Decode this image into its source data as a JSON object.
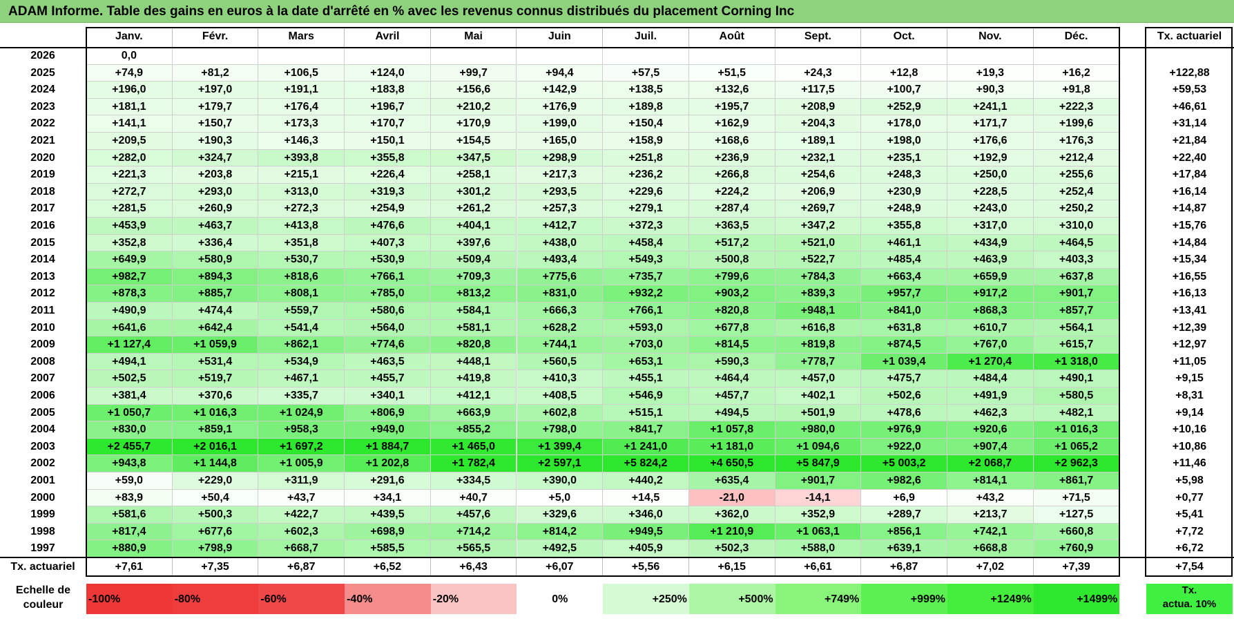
{
  "title": "ADAM Informe. Table des gains en euros à la date d'arrêté en % avec les revenus connus distribués du placement Corning Inc",
  "months": [
    "Janv.",
    "Févr.",
    "Mars",
    "Avril",
    "Mai",
    "Juin",
    "Juil.",
    "Août",
    "Sept.",
    "Oct.",
    "Nov.",
    "Déc."
  ],
  "rate_header": "Tx. actuariel",
  "rows": [
    {
      "year": "2026",
      "values": [
        "0,0",
        "",
        "",
        "",
        "",
        "",
        "",
        "",
        "",
        "",
        "",
        ""
      ],
      "rate": ""
    },
    {
      "year": "2025",
      "values": [
        "+74,9",
        "+81,2",
        "+106,5",
        "+124,0",
        "+99,7",
        "+94,4",
        "+57,5",
        "+51,5",
        "+24,3",
        "+12,8",
        "+19,3",
        "+16,2"
      ],
      "rate": "+122,88"
    },
    {
      "year": "2024",
      "values": [
        "+196,0",
        "+197,0",
        "+191,1",
        "+183,8",
        "+156,6",
        "+142,9",
        "+138,5",
        "+132,6",
        "+117,5",
        "+100,7",
        "+90,3",
        "+91,8"
      ],
      "rate": "+59,53"
    },
    {
      "year": "2023",
      "values": [
        "+181,1",
        "+179,7",
        "+176,4",
        "+196,7",
        "+210,2",
        "+176,9",
        "+189,8",
        "+195,7",
        "+208,9",
        "+252,9",
        "+241,1",
        "+222,3"
      ],
      "rate": "+46,61"
    },
    {
      "year": "2022",
      "values": [
        "+141,1",
        "+150,7",
        "+173,3",
        "+170,7",
        "+170,9",
        "+199,0",
        "+150,4",
        "+162,9",
        "+204,3",
        "+178,0",
        "+171,7",
        "+199,6"
      ],
      "rate": "+31,14"
    },
    {
      "year": "2021",
      "values": [
        "+209,5",
        "+190,3",
        "+146,3",
        "+150,1",
        "+154,5",
        "+165,0",
        "+158,9",
        "+168,6",
        "+189,1",
        "+198,0",
        "+176,6",
        "+176,3"
      ],
      "rate": "+21,84"
    },
    {
      "year": "2020",
      "values": [
        "+282,0",
        "+324,7",
        "+393,8",
        "+355,8",
        "+347,5",
        "+298,9",
        "+251,8",
        "+236,9",
        "+232,1",
        "+235,1",
        "+192,9",
        "+212,4"
      ],
      "rate": "+22,40"
    },
    {
      "year": "2019",
      "values": [
        "+221,3",
        "+203,8",
        "+215,1",
        "+226,4",
        "+258,1",
        "+217,3",
        "+236,2",
        "+266,8",
        "+254,6",
        "+248,3",
        "+250,0",
        "+255,6"
      ],
      "rate": "+17,84"
    },
    {
      "year": "2018",
      "values": [
        "+272,7",
        "+293,0",
        "+313,0",
        "+319,3",
        "+301,2",
        "+293,5",
        "+229,6",
        "+224,2",
        "+206,9",
        "+230,9",
        "+228,5",
        "+252,4"
      ],
      "rate": "+16,14"
    },
    {
      "year": "2017",
      "values": [
        "+281,5",
        "+260,9",
        "+272,3",
        "+254,9",
        "+261,2",
        "+257,3",
        "+279,1",
        "+287,4",
        "+269,7",
        "+248,9",
        "+243,0",
        "+250,2"
      ],
      "rate": "+14,87"
    },
    {
      "year": "2016",
      "values": [
        "+453,9",
        "+463,7",
        "+413,8",
        "+476,6",
        "+404,1",
        "+412,7",
        "+372,3",
        "+363,5",
        "+347,2",
        "+355,8",
        "+317,0",
        "+310,0"
      ],
      "rate": "+15,76"
    },
    {
      "year": "2015",
      "values": [
        "+352,8",
        "+336,4",
        "+351,8",
        "+407,3",
        "+397,6",
        "+438,0",
        "+458,4",
        "+517,2",
        "+521,0",
        "+461,1",
        "+434,9",
        "+464,5"
      ],
      "rate": "+14,84"
    },
    {
      "year": "2014",
      "values": [
        "+649,9",
        "+580,9",
        "+530,7",
        "+530,9",
        "+509,4",
        "+493,4",
        "+549,3",
        "+500,8",
        "+522,7",
        "+485,4",
        "+463,9",
        "+403,3"
      ],
      "rate": "+15,34"
    },
    {
      "year": "2013",
      "values": [
        "+982,7",
        "+894,3",
        "+818,6",
        "+766,1",
        "+709,3",
        "+775,6",
        "+735,7",
        "+799,6",
        "+784,3",
        "+663,4",
        "+659,9",
        "+637,8"
      ],
      "rate": "+16,55"
    },
    {
      "year": "2012",
      "values": [
        "+878,3",
        "+885,7",
        "+808,1",
        "+785,0",
        "+813,2",
        "+831,0",
        "+932,2",
        "+903,2",
        "+839,3",
        "+957,7",
        "+917,2",
        "+901,7"
      ],
      "rate": "+16,13"
    },
    {
      "year": "2011",
      "values": [
        "+490,9",
        "+474,4",
        "+559,7",
        "+580,6",
        "+584,1",
        "+666,3",
        "+766,1",
        "+820,8",
        "+948,1",
        "+841,0",
        "+868,3",
        "+857,7"
      ],
      "rate": "+13,41"
    },
    {
      "year": "2010",
      "values": [
        "+641,6",
        "+642,4",
        "+541,4",
        "+564,0",
        "+581,1",
        "+628,2",
        "+593,0",
        "+677,8",
        "+616,8",
        "+631,8",
        "+610,7",
        "+564,1"
      ],
      "rate": "+12,39"
    },
    {
      "year": "2009",
      "values": [
        "+1 127,4",
        "+1 059,9",
        "+862,1",
        "+774,6",
        "+820,8",
        "+744,1",
        "+703,0",
        "+814,5",
        "+819,8",
        "+874,5",
        "+767,0",
        "+615,7"
      ],
      "rate": "+12,97"
    },
    {
      "year": "2008",
      "values": [
        "+494,1",
        "+531,4",
        "+534,9",
        "+463,5",
        "+448,1",
        "+560,5",
        "+653,1",
        "+590,3",
        "+778,7",
        "+1 039,4",
        "+1 270,4",
        "+1 318,0"
      ],
      "rate": "+11,05"
    },
    {
      "year": "2007",
      "values": [
        "+502,5",
        "+519,7",
        "+467,1",
        "+455,7",
        "+419,8",
        "+410,3",
        "+455,1",
        "+464,4",
        "+457,0",
        "+475,7",
        "+484,4",
        "+490,1"
      ],
      "rate": "+9,15"
    },
    {
      "year": "2006",
      "values": [
        "+381,4",
        "+370,6",
        "+335,7",
        "+340,1",
        "+412,1",
        "+408,5",
        "+546,9",
        "+457,7",
        "+402,1",
        "+502,6",
        "+491,9",
        "+580,5"
      ],
      "rate": "+8,31"
    },
    {
      "year": "2005",
      "values": [
        "+1 050,7",
        "+1 016,3",
        "+1 024,9",
        "+806,9",
        "+663,9",
        "+602,8",
        "+515,1",
        "+494,5",
        "+501,9",
        "+478,6",
        "+462,3",
        "+482,1"
      ],
      "rate": "+9,14"
    },
    {
      "year": "2004",
      "values": [
        "+830,0",
        "+859,1",
        "+958,3",
        "+949,0",
        "+855,2",
        "+798,0",
        "+841,7",
        "+1 057,8",
        "+980,0",
        "+976,9",
        "+920,6",
        "+1 016,3"
      ],
      "rate": "+10,16"
    },
    {
      "year": "2003",
      "values": [
        "+2 455,7",
        "+2 016,1",
        "+1 697,2",
        "+1 884,7",
        "+1 465,0",
        "+1 399,4",
        "+1 241,0",
        "+1 181,0",
        "+1 094,6",
        "+922,0",
        "+907,4",
        "+1 065,2"
      ],
      "rate": "+10,86"
    },
    {
      "year": "2002",
      "values": [
        "+943,8",
        "+1 144,8",
        "+1 005,9",
        "+1 202,8",
        "+1 782,4",
        "+2 597,1",
        "+5 824,2",
        "+4 650,5",
        "+5 847,9",
        "+5 003,2",
        "+2 068,7",
        "+2 962,3"
      ],
      "rate": "+11,46"
    },
    {
      "year": "2001",
      "values": [
        "+59,0",
        "+229,0",
        "+311,9",
        "+291,6",
        "+334,5",
        "+390,0",
        "+440,2",
        "+635,4",
        "+901,7",
        "+982,6",
        "+814,1",
        "+861,7"
      ],
      "rate": "+5,98"
    },
    {
      "year": "2000",
      "values": [
        "+83,9",
        "+50,4",
        "+43,7",
        "+34,1",
        "+40,7",
        "+5,0",
        "+14,5",
        "-21,0",
        "-14,1",
        "+6,9",
        "+43,2",
        "+71,5"
      ],
      "rate": "+0,77"
    },
    {
      "year": "1999",
      "values": [
        "+581,6",
        "+500,3",
        "+422,7",
        "+439,5",
        "+457,6",
        "+329,6",
        "+346,0",
        "+362,0",
        "+352,9",
        "+289,7",
        "+213,7",
        "+127,5"
      ],
      "rate": "+5,41"
    },
    {
      "year": "1998",
      "values": [
        "+817,4",
        "+677,6",
        "+602,3",
        "+698,9",
        "+714,2",
        "+814,2",
        "+949,5",
        "+1 210,9",
        "+1 063,1",
        "+856,1",
        "+742,1",
        "+660,8"
      ],
      "rate": "+7,72"
    },
    {
      "year": "1997",
      "values": [
        "+880,9",
        "+798,9",
        "+668,7",
        "+585,5",
        "+565,5",
        "+492,5",
        "+405,9",
        "+502,3",
        "+588,0",
        "+639,1",
        "+668,8",
        "+760,9"
      ],
      "rate": "+6,72"
    }
  ],
  "footer": {
    "label": "Tx. actuariel",
    "values": [
      "+7,61",
      "+7,35",
      "+6,87",
      "+6,52",
      "+6,43",
      "+6,07",
      "+5,56",
      "+6,15",
      "+6,61",
      "+6,87",
      "+7,02",
      "+7,39"
    ],
    "rate": "+7,54"
  },
  "scale": {
    "label_line1": "Echelle de",
    "label_line2": "couleur",
    "items": [
      {
        "label": "-100%",
        "color": "#ee3838",
        "align": "left"
      },
      {
        "label": "-80%",
        "color": "#ef3d3d",
        "align": "left"
      },
      {
        "label": "-60%",
        "color": "#f04848",
        "align": "left"
      },
      {
        "label": "-40%",
        "color": "#f58c8c",
        "align": "left"
      },
      {
        "label": "-20%",
        "color": "#fbc4c4",
        "align": "left"
      },
      {
        "label": "0%",
        "color": "#ffffff",
        "align": "center"
      },
      {
        "label": "+250%",
        "color": "#d6fad3",
        "align": "right"
      },
      {
        "label": "+500%",
        "color": "#adf7a4",
        "align": "right"
      },
      {
        "label": "+749%",
        "color": "#88f47a",
        "align": "right"
      },
      {
        "label": "+999%",
        "color": "#5cf052",
        "align": "right"
      },
      {
        "label": "+1249%",
        "color": "#44ee3c",
        "align": "right"
      },
      {
        "label": "+1499%",
        "color": "#2de82d",
        "align": "right"
      }
    ],
    "legend_line1": "Tx.",
    "legend_line2": "actua. 10%"
  }
}
